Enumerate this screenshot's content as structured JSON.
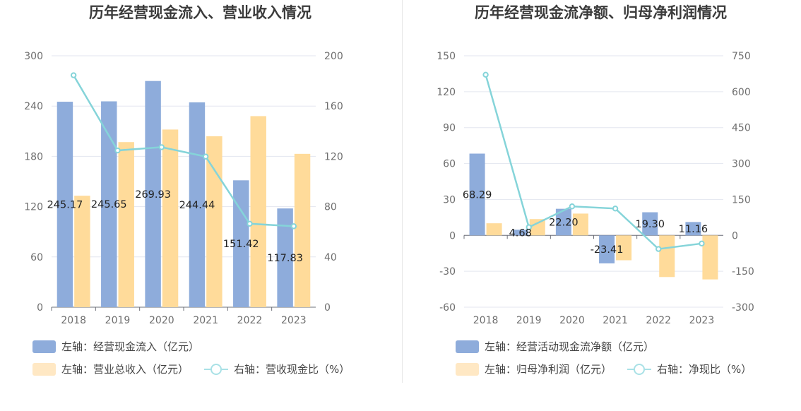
{
  "chart_data": [
    {
      "type": "bar",
      "title": "历年经营现金流入、营业收入情况",
      "categories": [
        "2018",
        "2019",
        "2020",
        "2021",
        "2022",
        "2023"
      ],
      "left_axis": {
        "ticks": [
          "0",
          "60",
          "120",
          "180",
          "240",
          "300"
        ],
        "range": [
          0,
          300
        ]
      },
      "right_axis": {
        "ticks": [
          "0",
          "40",
          "80",
          "120",
          "160",
          "200"
        ],
        "range": [
          0,
          200
        ]
      },
      "series": [
        {
          "name": "左轴：经营现金流入（亿元）",
          "axis": "left",
          "kind": "bar",
          "color": "#8eacdb",
          "values": [
            245.17,
            245.65,
            269.93,
            244.44,
            151.42,
            117.83
          ],
          "labels": [
            "245.17",
            "245.65",
            "269.93",
            "244.44",
            "151.42",
            "117.83"
          ]
        },
        {
          "name": "左轴：营业总收入（亿元）",
          "axis": "left",
          "kind": "bar",
          "color": "#ffdb9a",
          "values": [
            133,
            197,
            212,
            204,
            228,
            183
          ]
        },
        {
          "name": "右轴：营收现金比（%）",
          "axis": "right",
          "kind": "line",
          "color": "#85d4d9",
          "values": [
            184.5,
            124.7,
            127.3,
            119.8,
            66.4,
            64.4
          ]
        }
      ],
      "legend": {
        "position": "bottom",
        "rows": [
          [
            0
          ],
          [
            1,
            2
          ]
        ]
      },
      "grid": true
    },
    {
      "type": "bar",
      "title": "历年经营现金流净额、归母净利润情况",
      "categories": [
        "2018",
        "2019",
        "2020",
        "2021",
        "2022",
        "2023"
      ],
      "left_axis": {
        "ticks": [
          "-60",
          "-30",
          "0",
          "30",
          "60",
          "90",
          "120",
          "150"
        ],
        "range": [
          -60,
          150
        ]
      },
      "right_axis": {
        "ticks": [
          "-300",
          "-150",
          "0",
          "150",
          "300",
          "450",
          "600",
          "750"
        ],
        "range": [
          -300,
          750
        ]
      },
      "series": [
        {
          "name": "左轴：经营活动现金流净额（亿元）",
          "axis": "left",
          "kind": "bar",
          "color": "#8eacdb",
          "values": [
            68.29,
            4.68,
            22.2,
            -23.41,
            19.3,
            11.16
          ],
          "labels": [
            "68.29",
            "4.68",
            "22.20",
            "-23.41",
            "19.30",
            "11.16"
          ]
        },
        {
          "name": "左轴：归母净利润（亿元）",
          "axis": "left",
          "kind": "bar",
          "color": "#ffdb9a",
          "values": [
            10.1,
            13.6,
            18.2,
            -20.8,
            -34.8,
            -36.8
          ]
        },
        {
          "name": "右轴：净现比（%）",
          "axis": "right",
          "kind": "line",
          "color": "#85d4d9",
          "values": [
            671,
            34,
            121,
            112,
            -57,
            -34
          ]
        }
      ],
      "legend": {
        "position": "bottom",
        "rows": [
          [
            0
          ],
          [
            1,
            2
          ]
        ]
      },
      "grid": true
    }
  ]
}
